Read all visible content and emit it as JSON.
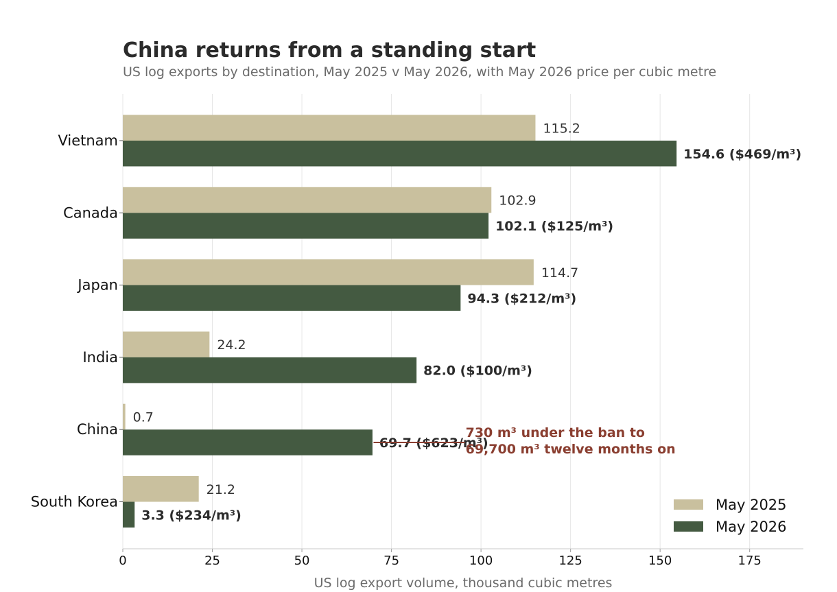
{
  "chart_data": {
    "type": "bar",
    "orientation": "horizontal",
    "title": "China returns from a standing start",
    "subtitle": "US log exports by destination, May 2025 v May 2026, with May 2026 price per cubic metre",
    "xlabel": "US log export volume, thousand cubic metres",
    "xlim": [
      0,
      190
    ],
    "xticks": [
      0,
      25,
      50,
      75,
      100,
      125,
      150,
      175
    ],
    "grid": "vertical",
    "legend_position": "bottom-right",
    "categories": [
      "Vietnam",
      "Canada",
      "Japan",
      "India",
      "China",
      "South Korea"
    ],
    "series": [
      {
        "name": "May 2025",
        "color": "#c9c09e",
        "values": [
          115.2,
          102.9,
          114.7,
          24.2,
          0.7,
          21.2
        ],
        "labels": [
          "115.2",
          "102.9",
          "114.7",
          "24.2",
          "0.7",
          "21.2"
        ]
      },
      {
        "name": "May 2026",
        "color": "#445a41",
        "values": [
          154.6,
          102.1,
          94.3,
          82.0,
          69.7,
          3.3
        ],
        "labels": [
          "154.6  ($469/m³)",
          "102.1  ($125/m³)",
          "94.3  ($212/m³)",
          "82.0  ($100/m³)",
          "69.7  ($623/m³)",
          "3.3  ($234/m³)"
        ]
      }
    ],
    "annotation": {
      "lines": [
        "730 m³ under the ban to",
        "69,700 m³ twelve months on"
      ],
      "color": "#8a3e30",
      "target_category": "China",
      "target_series": "May 2026",
      "arrow_tail_x": 95.5,
      "arrow_head_x": 70
    }
  }
}
